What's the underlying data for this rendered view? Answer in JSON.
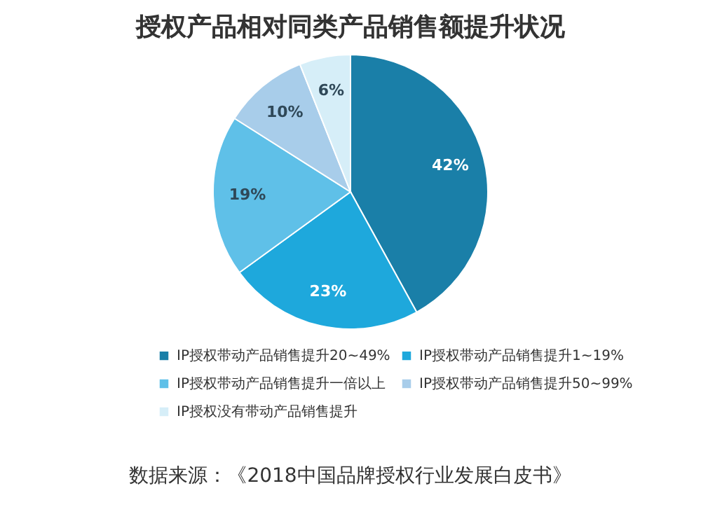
{
  "chart_data": {
    "type": "pie",
    "title": "授权产品相对同类产品销售额提升状况",
    "categories": [
      "IP授权带动产品销售提升20~49%",
      "IP授权带动产品销售提升1~19%",
      "IP授权带动产品销售提升一倍以上",
      "IP授权带动产品销售提升50~99%",
      "IP授权没有带动产品销售提升"
    ],
    "values": [
      42,
      23,
      19,
      10,
      6
    ],
    "colors": [
      "#1a7fa8",
      "#1ea8dc",
      "#5fc0e8",
      "#a8cdea",
      "#d6eef8"
    ],
    "value_labels": [
      "42%",
      "23%",
      "19%",
      "10%",
      "6%"
    ],
    "legend": "bottom",
    "annotations": [
      "数据来源：《2018中国品牌授权行业发展白皮书》"
    ]
  }
}
